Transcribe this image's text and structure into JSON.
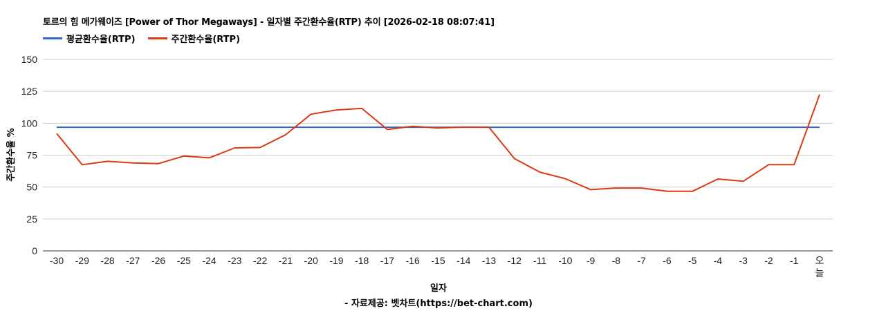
{
  "header": {
    "title": "토르의 힘 메가웨이즈 [Power of Thor Megaways] - 일자별 주간환수율(RTP) 추이 [2026-02-18 08:07:41]"
  },
  "legend": [
    {
      "label": "평균환수율(RTP)",
      "color": "#3366cc"
    },
    {
      "label": "주간환수율(RTP)",
      "color": "#dc3912"
    }
  ],
  "footer": {
    "xlabel": "일자",
    "credit": "- 자료제공: 벳차트(https://bet-chart.com)"
  },
  "chart_data": {
    "type": "line",
    "title": "토르의 힘 메가웨이즈 [Power of Thor Megaways] - 일자별 주간환수율(RTP) 추이 [2026-02-18 08:07:41]",
    "xlabel": "일자",
    "ylabel": "주간환수율 %",
    "ylim": [
      0,
      150
    ],
    "yticks": [
      0,
      25,
      50,
      75,
      100,
      125,
      150
    ],
    "grid": true,
    "legend_position": "top",
    "categories": [
      "-30",
      "-29",
      "-28",
      "-27",
      "-26",
      "-25",
      "-24",
      "-23",
      "-22",
      "-21",
      "-20",
      "-19",
      "-18",
      "-17",
      "-16",
      "-15",
      "-14",
      "-13",
      "-12",
      "-11",
      "-10",
      "-9",
      "-8",
      "-7",
      "-6",
      "-5",
      "-4",
      "-3",
      "-2",
      "-1",
      "오늘"
    ],
    "series": [
      {
        "name": "평균환수율(RTP)",
        "color": "#3366cc",
        "values": [
          96.9,
          96.9,
          96.9,
          96.9,
          96.9,
          96.9,
          96.9,
          96.9,
          96.9,
          96.9,
          96.9,
          96.9,
          96.9,
          96.9,
          96.9,
          96.9,
          96.9,
          96.9,
          96.9,
          96.9,
          96.9,
          96.9,
          96.9,
          96.9,
          96.9,
          96.9,
          96.9,
          96.9,
          96.9,
          96.9,
          96.9
        ]
      },
      {
        "name": "주간환수율(RTP)",
        "color": "#dc3912",
        "values": [
          91.9,
          67.5,
          70.2,
          68.9,
          68.4,
          74.3,
          72.9,
          80.7,
          81.0,
          91.0,
          107.1,
          110.4,
          111.6,
          95.1,
          97.6,
          96.3,
          97.0,
          96.9,
          72.3,
          61.7,
          56.6,
          48.0,
          49.2,
          49.2,
          46.7,
          46.7,
          56.3,
          54.6,
          67.6,
          67.6,
          122.5
        ]
      }
    ]
  }
}
